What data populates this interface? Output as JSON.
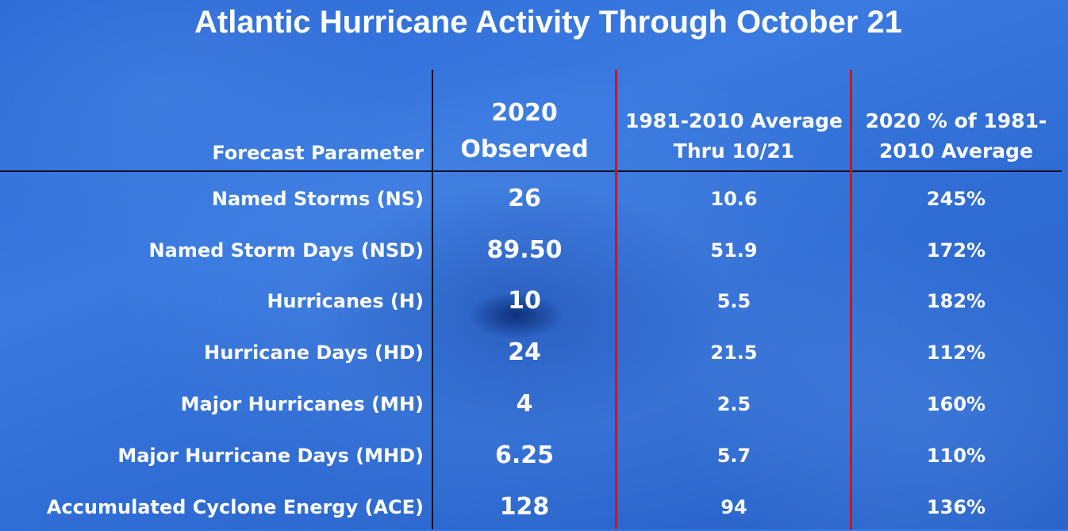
{
  "title": "Atlantic Hurricane Activity Through October 21",
  "headers": {
    "parameter": "Forecast Parameter",
    "observed_line1": "2020",
    "observed_line2": "Observed",
    "average_line1": "1981-2010 Average",
    "average_line2": "Thru 10/21",
    "percent_line1": "2020 % of 1981-",
    "percent_line2": "2010 Average"
  },
  "rows": [
    {
      "parameter": "Named Storms (NS)",
      "observed": "26",
      "average": "10.6",
      "percent": "245%"
    },
    {
      "parameter": "Named Storm Days (NSD)",
      "observed": "89.50",
      "average": "51.9",
      "percent": "172%"
    },
    {
      "parameter": "Hurricanes (H)",
      "observed": "10",
      "average": "5.5",
      "percent": "182%"
    },
    {
      "parameter": "Hurricane Days (HD)",
      "observed": "24",
      "average": "21.5",
      "percent": "112%"
    },
    {
      "parameter": "Major Hurricanes (MH)",
      "observed": "4",
      "average": "2.5",
      "percent": "160%"
    },
    {
      "parameter": "Major Hurricane Days (MHD)",
      "observed": "6.25",
      "average": "5.7",
      "percent": "110%"
    },
    {
      "parameter": "Accumulated Cyclone Energy (ACE)",
      "observed": "128",
      "average": "94",
      "percent": "136%"
    }
  ],
  "colors": {
    "background": "#2f6cd4",
    "divider_red": "#d4121e",
    "text": "#ffffff"
  }
}
